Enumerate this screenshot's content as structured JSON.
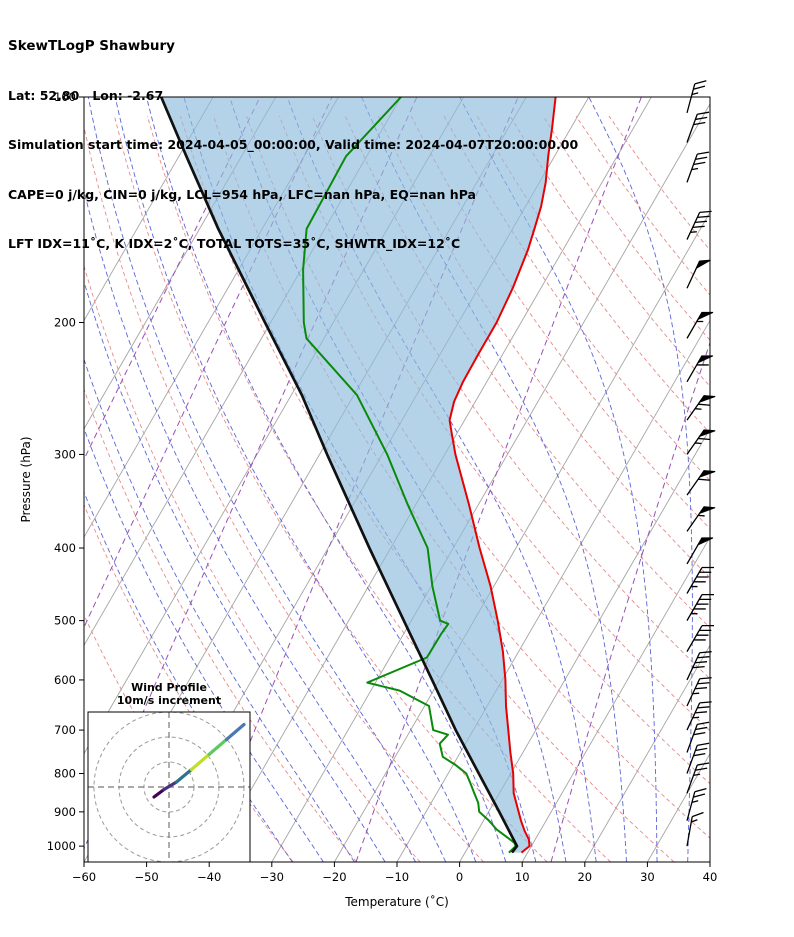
{
  "header": {
    "title": "SkewTLogP Shawbury",
    "location": "Lat: 52.80   Lon: -2.67",
    "times": "Simulation start time: 2024-04-05_00:00:00, Valid time: 2024-04-07T20:00:00.00",
    "indices1": "CAPE=0 j/kg, CIN=0 j/kg, LCL=954 hPa, LFC=nan hPa, EQ=nan hPa",
    "indices2": "LFT IDX=11˚C, K IDX=2˚C, TOTAL TOTS=35˚C, SHWTR_IDX=12˚C"
  },
  "chart_data": {
    "type": "skewt_logp_sounding",
    "x_axis": {
      "label": "Temperature (˚C)",
      "ticks": [
        -60,
        -50,
        -40,
        -30,
        -20,
        -10,
        0,
        10,
        20,
        30,
        40
      ],
      "range": [
        -60,
        40
      ]
    },
    "y_axis": {
      "label": "Pressure (hPa)",
      "ticks": [
        100,
        200,
        300,
        400,
        500,
        600,
        700,
        800,
        900,
        1000
      ],
      "range": [
        100,
        1050
      ],
      "scale": "log"
    },
    "skew": 0.578,
    "isotherms": {
      "min": -110,
      "max": 40,
      "step": 10,
      "color": "#a5a5a5"
    },
    "dry_adiabats": {
      "min": -40,
      "max": 160,
      "step": 10,
      "color": "#e58b8b"
    },
    "moist_adiabats": {
      "min": -30,
      "max": 35,
      "step": 5,
      "color": "#5a66d6"
    },
    "mixing_ratios": {
      "values_g_kg": [
        0.0001,
        0.001,
        0.01,
        0.1,
        1,
        10
      ],
      "color": "#9950b5"
    },
    "shade_color": "#8ebcdc",
    "temperature_profile": {
      "name": "temperature",
      "color": "#e60000",
      "points": [
        [
          1020,
          9
        ],
        [
          1000,
          9.7
        ],
        [
          980,
          9
        ],
        [
          954,
          7.5
        ],
        [
          925,
          6
        ],
        [
          900,
          4.8
        ],
        [
          850,
          2.3
        ],
        [
          800,
          0.4
        ],
        [
          750,
          -2
        ],
        [
          700,
          -4.4
        ],
        [
          650,
          -7
        ],
        [
          600,
          -9.5
        ],
        [
          550,
          -12.5
        ],
        [
          500,
          -16.2
        ],
        [
          450,
          -20.5
        ],
        [
          400,
          -25.8
        ],
        [
          350,
          -31.5
        ],
        [
          300,
          -38.3
        ],
        [
          280,
          -41
        ],
        [
          270,
          -42.4
        ],
        [
          255,
          -43.4
        ],
        [
          240,
          -43.8
        ],
        [
          220,
          -43.9
        ],
        [
          200,
          -43.9
        ],
        [
          180,
          -44.5
        ],
        [
          160,
          -45.6
        ],
        [
          150,
          -46.5
        ],
        [
          140,
          -47.5
        ],
        [
          130,
          -49
        ],
        [
          120,
          -51
        ],
        [
          110,
          -53
        ],
        [
          100,
          -55.3
        ]
      ]
    },
    "dewpoint_profile": {
      "name": "dewpoint",
      "color": "#0a8a0a",
      "points": [
        [
          1020,
          7
        ],
        [
          1000,
          7.5
        ],
        [
          990,
          7
        ],
        [
          975,
          5.5
        ],
        [
          950,
          2.9
        ],
        [
          925,
          0.9
        ],
        [
          900,
          -1.5
        ],
        [
          875,
          -2.5
        ],
        [
          850,
          -4
        ],
        [
          825,
          -5.5
        ],
        [
          800,
          -7.1
        ],
        [
          780,
          -9.5
        ],
        [
          760,
          -12.4
        ],
        [
          730,
          -14.1
        ],
        [
          710,
          -13.6
        ],
        [
          700,
          -16.4
        ],
        [
          650,
          -19.3
        ],
        [
          620,
          -25.4
        ],
        [
          605,
          -31.3
        ],
        [
          560,
          -24.1
        ],
        [
          520,
          -24
        ],
        [
          505,
          -23.8
        ],
        [
          500,
          -25.4
        ],
        [
          450,
          -29.8
        ],
        [
          400,
          -34.1
        ],
        [
          350,
          -41.3
        ],
        [
          300,
          -49.2
        ],
        [
          250,
          -59.5
        ],
        [
          210,
          -72.8
        ],
        [
          200,
          -74.7
        ],
        [
          170,
          -79.7
        ],
        [
          150,
          -82.9
        ],
        [
          120,
          -83.3
        ],
        [
          100,
          -80
        ]
      ]
    },
    "parcel_profile": {
      "name": "parcel",
      "color": "#111111",
      "points": [
        [
          1020,
          7.5
        ],
        [
          1000,
          7.7
        ],
        [
          900,
          1.7
        ],
        [
          800,
          -5.1
        ],
        [
          700,
          -12.8
        ],
        [
          600,
          -21.2
        ],
        [
          500,
          -31.2
        ],
        [
          400,
          -43.4
        ],
        [
          300,
          -58.8
        ],
        [
          250,
          -68.3
        ],
        [
          200,
          -80.9
        ],
        [
          150,
          -97
        ],
        [
          120,
          -108.8
        ],
        [
          100,
          -118.3
        ]
      ]
    },
    "wind_barbs": [
      {
        "p": 1000,
        "speed_kt": 15,
        "dir_deg": 190
      },
      {
        "p": 925,
        "speed_kt": 25,
        "dir_deg": 195
      },
      {
        "p": 850,
        "speed_kt": 25,
        "dir_deg": 200
      },
      {
        "p": 800,
        "speed_kt": 30,
        "dir_deg": 200
      },
      {
        "p": 750,
        "speed_kt": 30,
        "dir_deg": 200
      },
      {
        "p": 700,
        "speed_kt": 35,
        "dir_deg": 205
      },
      {
        "p": 650,
        "speed_kt": 35,
        "dir_deg": 205
      },
      {
        "p": 600,
        "speed_kt": 40,
        "dir_deg": 205
      },
      {
        "p": 550,
        "speed_kt": 40,
        "dir_deg": 210
      },
      {
        "p": 500,
        "speed_kt": 45,
        "dir_deg": 210
      },
      {
        "p": 460,
        "speed_kt": 45,
        "dir_deg": 210
      },
      {
        "p": 420,
        "speed_kt": 50,
        "dir_deg": 210
      },
      {
        "p": 380,
        "speed_kt": 55,
        "dir_deg": 215
      },
      {
        "p": 340,
        "speed_kt": 60,
        "dir_deg": 215
      },
      {
        "p": 300,
        "speed_kt": 65,
        "dir_deg": 215
      },
      {
        "p": 270,
        "speed_kt": 65,
        "dir_deg": 215
      },
      {
        "p": 240,
        "speed_kt": 60,
        "dir_deg": 210
      },
      {
        "p": 210,
        "speed_kt": 55,
        "dir_deg": 210
      },
      {
        "p": 180,
        "speed_kt": 50,
        "dir_deg": 205
      },
      {
        "p": 155,
        "speed_kt": 45,
        "dir_deg": 205
      },
      {
        "p": 130,
        "speed_kt": 35,
        "dir_deg": 200
      },
      {
        "p": 115,
        "speed_kt": 30,
        "dir_deg": 200
      },
      {
        "p": 105,
        "speed_kt": 25,
        "dir_deg": 195
      }
    ],
    "hodograph": {
      "title": "Wind Profile",
      "subtitle": "10m/s increment",
      "ring_spacing_ms": 10,
      "rings_ms": [
        10,
        20,
        30
      ],
      "trace_uv_ms": [
        [
          -6,
          -4
        ],
        [
          -2,
          -1
        ],
        [
          3,
          2
        ],
        [
          9,
          7
        ],
        [
          16,
          13
        ],
        [
          23,
          19
        ],
        [
          30,
          25
        ]
      ],
      "segment_colors": [
        "#440154",
        "#46327e",
        "#2c728e",
        "#bddf26",
        "#5ec962",
        "#4a78b5"
      ]
    }
  }
}
